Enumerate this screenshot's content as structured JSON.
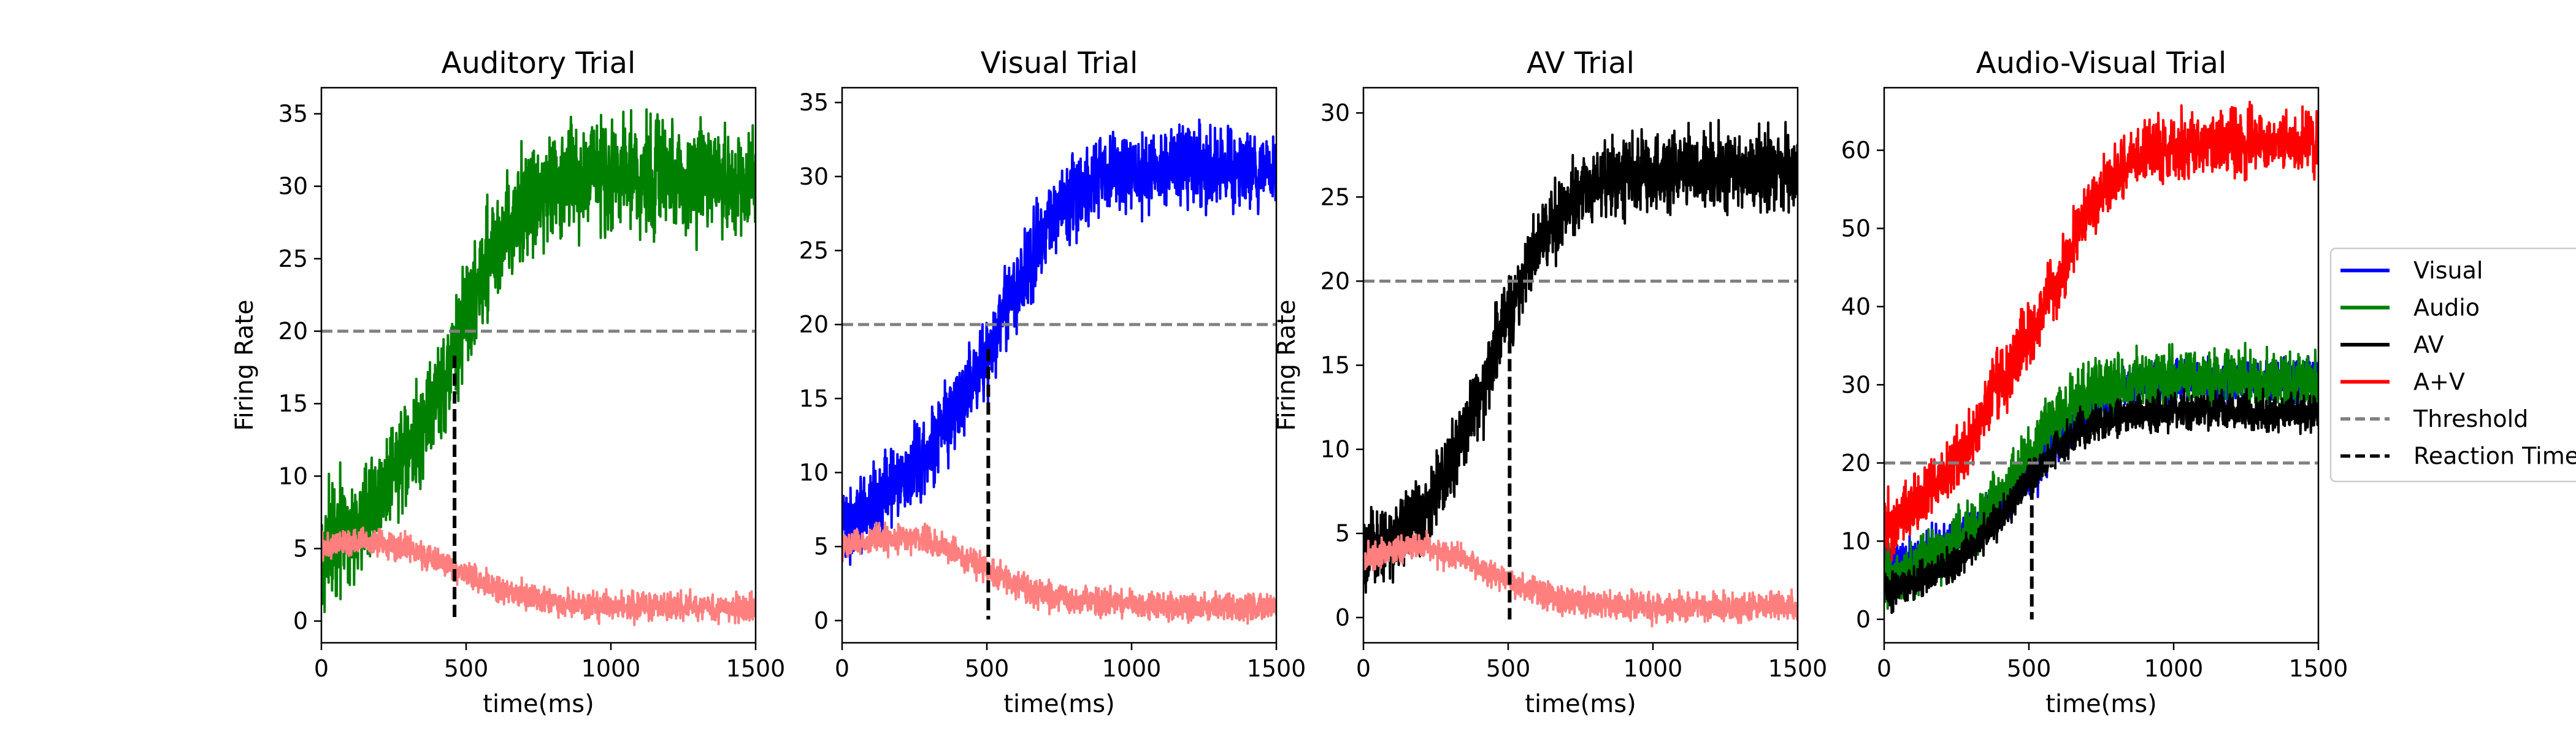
{
  "chart_data": [
    {
      "type": "line",
      "title": "Auditory Trial",
      "xlabel": "time(ms)",
      "ylabel": "Firing Rate",
      "xlim": [
        0,
        1500
      ],
      "ylim": [
        -1.5,
        36.8
      ],
      "xticks": [
        0,
        500,
        1000,
        1500
      ],
      "yticks": [
        0,
        5,
        10,
        15,
        20,
        25,
        30,
        35
      ],
      "threshold": 20,
      "reaction_time": 460,
      "series": [
        {
          "name": "Audio",
          "color": "#008000",
          "x": [
            0,
            100,
            200,
            300,
            400,
            460,
            500,
            600,
            700,
            800,
            900,
            1000,
            1100,
            1200,
            1300,
            1400,
            1500
          ],
          "y": [
            5,
            6.3,
            8.5,
            11.5,
            15.5,
            18.5,
            21,
            26,
            28.8,
            30.1,
            30.6,
            30.8,
            30.8,
            30.6,
            30.4,
            30.3,
            30.2
          ],
          "noise": 1.8
        },
        {
          "name": "",
          "color": "#ff7f7f",
          "x": [
            0,
            100,
            200,
            300,
            400,
            500,
            600,
            700,
            800,
            900,
            1000,
            1100,
            1200,
            1300,
            1400,
            1500
          ],
          "y": [
            5,
            5.5,
            5.4,
            5,
            4.2,
            3.2,
            2.3,
            1.7,
            1.3,
            1.1,
            1,
            1,
            1,
            0.9,
            0.9,
            0.9
          ],
          "noise": 0.45
        }
      ]
    },
    {
      "type": "line",
      "title": "Visual Trial",
      "xlabel": "time(ms)",
      "ylabel": "",
      "xlim": [
        0,
        1500
      ],
      "ylim": [
        -1.5,
        36.0
      ],
      "xticks": [
        0,
        500,
        1000,
        1500
      ],
      "yticks": [
        0,
        5,
        10,
        15,
        20,
        25,
        30,
        35
      ],
      "threshold": 20,
      "reaction_time": 505,
      "series": [
        {
          "name": "Visual",
          "color": "#0000ff",
          "x": [
            0,
            100,
            200,
            300,
            400,
            500,
            600,
            700,
            800,
            900,
            1000,
            1100,
            1200,
            1300,
            1400,
            1500
          ],
          "y": [
            6.5,
            8,
            9.5,
            11.5,
            14.5,
            18,
            22.5,
            26.5,
            29,
            30,
            30.5,
            30.6,
            30.6,
            30.6,
            30.6,
            30.6
          ],
          "noise": 1.3
        },
        {
          "name": "",
          "color": "#ff7f7f",
          "x": [
            0,
            100,
            200,
            300,
            400,
            500,
            600,
            700,
            800,
            900,
            1000,
            1100,
            1200,
            1300,
            1400,
            1500
          ],
          "y": [
            5,
            5.5,
            5.6,
            5.4,
            4.6,
            3.5,
            2.5,
            1.8,
            1.4,
            1.2,
            1.1,
            1,
            0.9,
            0.9,
            0.9,
            0.9
          ],
          "noise": 0.45
        }
      ]
    },
    {
      "type": "line",
      "title": "AV Trial",
      "xlabel": "time(ms)",
      "ylabel": "Firing Rate",
      "xlim": [
        0,
        1500
      ],
      "ylim": [
        -1.5,
        31.5
      ],
      "xticks": [
        0,
        500,
        1000,
        1500
      ],
      "yticks": [
        0,
        5,
        10,
        15,
        20,
        25,
        30
      ],
      "threshold": 20,
      "reaction_time": 505,
      "series": [
        {
          "name": "AV",
          "color": "#000000",
          "x": [
            0,
            100,
            200,
            300,
            400,
            500,
            600,
            700,
            800,
            900,
            1000,
            1100,
            1200,
            1300,
            1400,
            1500
          ],
          "y": [
            3.5,
            4.5,
            6.5,
            9,
            13,
            18,
            22,
            24.5,
            25.8,
            26.3,
            26.5,
            26.6,
            26.6,
            26.5,
            26.5,
            26.5
          ],
          "noise": 1.1
        },
        {
          "name": "",
          "color": "#ff7f7f",
          "x": [
            0,
            100,
            200,
            300,
            400,
            500,
            600,
            700,
            800,
            900,
            1000,
            1100,
            1200,
            1300,
            1400,
            1500
          ],
          "y": [
            3.5,
            4,
            4.2,
            3.8,
            3,
            2.2,
            1.5,
            1,
            0.8,
            0.7,
            0.6,
            0.6,
            0.6,
            0.6,
            0.6,
            0.6
          ],
          "noise": 0.4
        }
      ]
    },
    {
      "type": "line",
      "title": "Audio-Visual Trial",
      "xlabel": "time(ms)",
      "ylabel": "",
      "xlim": [
        0,
        1500
      ],
      "ylim": [
        -3,
        68
      ],
      "xticks": [
        0,
        500,
        1000,
        1500
      ],
      "yticks": [
        0,
        10,
        20,
        30,
        40,
        50,
        60
      ],
      "threshold": 20,
      "reaction_time": 510,
      "series": [
        {
          "name": "Visual",
          "color": "#0000ff",
          "x": [
            0,
            100,
            200,
            300,
            400,
            500,
            600,
            700,
            800,
            900,
            1000,
            1100,
            1200,
            1300,
            1400,
            1500
          ],
          "y": [
            6.5,
            8,
            9.5,
            11.5,
            14.5,
            18,
            22.5,
            26.5,
            29,
            30,
            30.5,
            30.6,
            30.6,
            30.6,
            30.6,
            30.6
          ],
          "noise": 1.3
        },
        {
          "name": "Audio",
          "color": "#008000",
          "x": [
            0,
            100,
            200,
            300,
            400,
            460,
            500,
            600,
            700,
            800,
            900,
            1000,
            1100,
            1200,
            1300,
            1400,
            1500
          ],
          "y": [
            5,
            6.3,
            8.5,
            11.5,
            15.5,
            18.5,
            21,
            26,
            28.8,
            30.1,
            30.6,
            30.8,
            30.8,
            30.6,
            30.4,
            30.3,
            30.2
          ],
          "noise": 1.8
        },
        {
          "name": "AV",
          "color": "#000000",
          "x": [
            0,
            100,
            200,
            300,
            400,
            500,
            600,
            700,
            800,
            900,
            1000,
            1100,
            1200,
            1300,
            1400,
            1500
          ],
          "y": [
            3.5,
            4.5,
            6.5,
            9,
            13,
            18,
            22,
            24.5,
            25.8,
            26.3,
            26.5,
            26.6,
            26.6,
            26.5,
            26.5,
            26.5
          ],
          "noise": 1.1
        },
        {
          "name": "A+V",
          "color": "#ff0000",
          "x": [
            0,
            100,
            200,
            300,
            400,
            500,
            600,
            700,
            800,
            900,
            1000,
            1100,
            1200,
            1300,
            1400,
            1500
          ],
          "y": [
            11.5,
            14.5,
            18,
            23,
            30,
            36,
            43.5,
            52,
            57,
            59.5,
            60.5,
            61,
            61,
            61,
            61,
            61
          ],
          "noise": 2
        }
      ]
    }
  ],
  "legend": {
    "placement": "right",
    "entries": [
      {
        "label": "Visual",
        "color": "#0000ff",
        "style": "solid"
      },
      {
        "label": "Audio",
        "color": "#008000",
        "style": "solid"
      },
      {
        "label": "AV",
        "color": "#000000",
        "style": "solid"
      },
      {
        "label": "A+V",
        "color": "#ff0000",
        "style": "solid"
      },
      {
        "label": "Threshold",
        "color": "#808080",
        "style": "dashed"
      },
      {
        "label": "Reaction Time",
        "color": "#000000",
        "style": "dashed"
      }
    ]
  },
  "colors": {
    "threshold": "#808080",
    "reaction_time": "#000000",
    "axes": "#000000"
  }
}
